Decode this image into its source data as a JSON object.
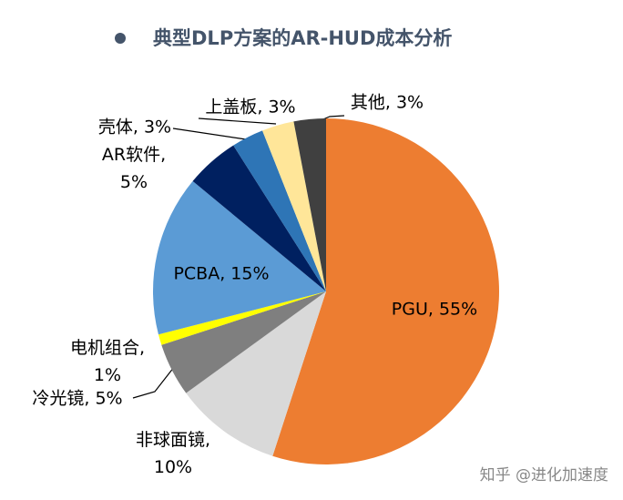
{
  "chart_data": {
    "type": "pie",
    "title": "典型DLP方案的AR-HUD成本分析",
    "labels": [
      "PGU, 55%",
      "非球面镜, 10%",
      "冷光镜, 5%",
      "电机组合, 1%",
      "PCBA, 15%",
      "AR软件, 5%",
      "壳体, 3%",
      "上盖板, 3%",
      "其他, 3%"
    ],
    "values": [
      55,
      10,
      5,
      1,
      15,
      5,
      3,
      3,
      3
    ],
    "colors": [
      "#ED7D31",
      "#D9D9D9",
      "#7F7F7F",
      "#FFFF00",
      "#5B9BD5",
      "#002060",
      "#2E75B6",
      "#FFE699",
      "#404040"
    ]
  },
  "watermark": "知乎 @进化加速度"
}
